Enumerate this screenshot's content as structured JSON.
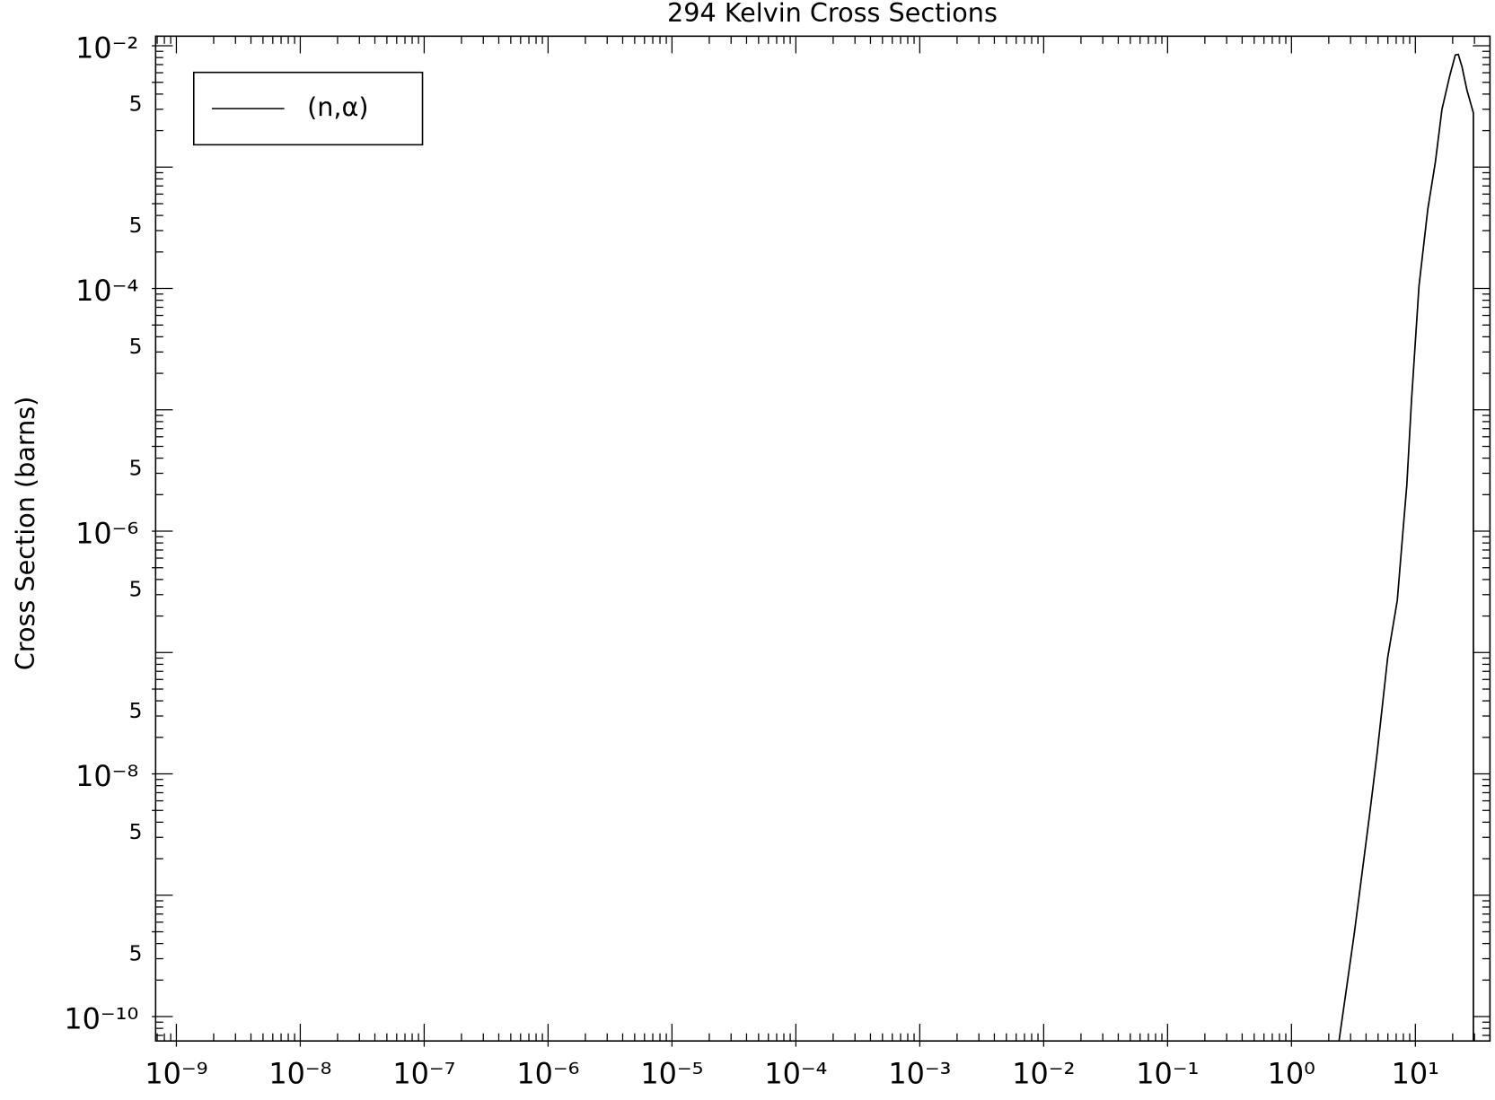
{
  "chart_data": {
    "type": "line",
    "title": "294 Kelvin Cross Sections",
    "y_label": "Cross Section (barns)",
    "xscale": "log",
    "yscale": "log",
    "xlim": [
      6.8e-10,
      40
    ],
    "ylim": [
      6.3e-11,
      0.012
    ],
    "xticks": [
      {
        "value": 1e-09,
        "label": "10⁻⁹"
      },
      {
        "value": 1e-08,
        "label": "10⁻⁸"
      },
      {
        "value": 1e-07,
        "label": "10⁻⁷"
      },
      {
        "value": 1e-06,
        "label": "10⁻⁶"
      },
      {
        "value": 1e-05,
        "label": "10⁻⁵"
      },
      {
        "value": 0.0001,
        "label": "10⁻⁴"
      },
      {
        "value": 0.001,
        "label": "10⁻³"
      },
      {
        "value": 0.01,
        "label": "10⁻²"
      },
      {
        "value": 0.1,
        "label": "10⁻¹"
      },
      {
        "value": 1,
        "label": "10⁰"
      },
      {
        "value": 10,
        "label": "10¹"
      }
    ],
    "yticks": [
      {
        "value": 0.01,
        "label": "10⁻²"
      },
      {
        "value": 0.005,
        "label": "5"
      },
      {
        "value": 0.0005,
        "label": "5"
      },
      {
        "value": 0.0001,
        "label": "10⁻⁴"
      },
      {
        "value": 5e-05,
        "label": "5"
      },
      {
        "value": 5e-06,
        "label": "5"
      },
      {
        "value": 1e-06,
        "label": "10⁻⁶"
      },
      {
        "value": 5e-07,
        "label": "5"
      },
      {
        "value": 5e-08,
        "label": "5"
      },
      {
        "value": 1e-08,
        "label": "10⁻⁸"
      },
      {
        "value": 5e-09,
        "label": "5"
      },
      {
        "value": 5e-10,
        "label": "5"
      },
      {
        "value": 1e-10,
        "label": "10⁻¹⁰"
      }
    ],
    "legend": "upper left",
    "grid": false,
    "series": [
      {
        "name": "(n,α)",
        "color": "#000000",
        "x": [
          2.42,
          3.21,
          4.27,
          4.92,
          5.98,
          7.15,
          7.8,
          8.53,
          9.31,
          10.7,
          12.6,
          14.5,
          16.4,
          18.9,
          21.0,
          22.2,
          23.8,
          26.1,
          29.4,
          29.4
        ],
        "values": [
          6.3e-11,
          4.8e-10,
          4.6e-09,
          1.5e-08,
          9.1e-08,
          2.7e-07,
          8e-07,
          2.4e-06,
          1.2e-05,
          0.000105,
          0.00045,
          0.0011,
          0.003,
          0.0056,
          0.0084,
          0.0085,
          0.0067,
          0.0043,
          0.0028,
          6.3e-11
        ]
      }
    ]
  }
}
